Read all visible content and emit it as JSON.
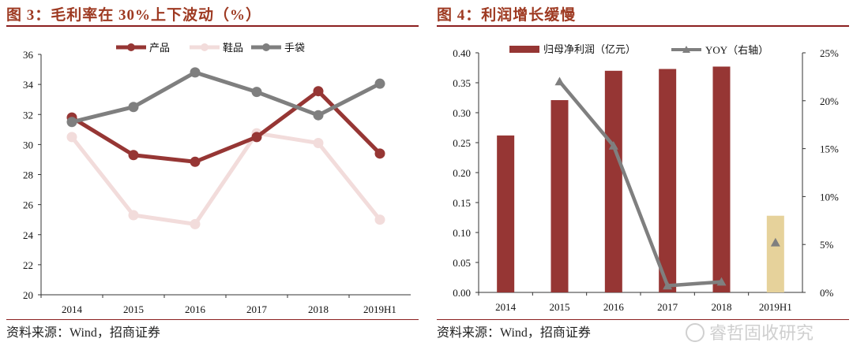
{
  "left": {
    "title": "图 3：毛利率在 30%上下波动（%）",
    "source": "资料来源：Wind，招商证券"
  },
  "right": {
    "title": "图 4：利润增长缓慢",
    "source": "资料来源：Wind，招商证券"
  },
  "watermark": "睿哲固收研究",
  "colors": {
    "dark_red": "#963634",
    "pink": "#f2dcdb",
    "gray": "#7f7f7f",
    "tan": "#e6d29b",
    "title": "#9e3a22"
  },
  "chart_data": [
    {
      "type": "line",
      "title": "毛利率在 30%上下波动（%）",
      "categories": [
        "2014",
        "2015",
        "2016",
        "2017",
        "2018",
        "2019H1"
      ],
      "series": [
        {
          "name": "产品",
          "values": [
            31.8,
            29.3,
            28.85,
            30.5,
            33.55,
            29.4
          ],
          "color": "#963634"
        },
        {
          "name": "鞋品",
          "values": [
            30.5,
            25.3,
            24.7,
            30.75,
            30.1,
            25.0
          ],
          "color": "#f2dcdb"
        },
        {
          "name": "手袋",
          "values": [
            31.5,
            32.5,
            34.8,
            33.5,
            31.95,
            34.05
          ],
          "color": "#7f7f7f"
        }
      ],
      "ylim": [
        20,
        36
      ],
      "yticks": [
        "20",
        "22",
        "24",
        "26",
        "28",
        "30",
        "32",
        "34",
        "36"
      ],
      "legend": "top-center"
    },
    {
      "type": "bar",
      "title": "利润增长缓慢",
      "categories": [
        "2014",
        "2015",
        "2016",
        "2017",
        "2018",
        "2019H1"
      ],
      "series": [
        {
          "name": "归母净利润（亿元）",
          "values": [
            0.262,
            0.321,
            0.37,
            0.373,
            0.377,
            0.128
          ],
          "axis": "left"
        },
        {
          "name": "YOY（右轴）",
          "values": [
            null,
            22.0,
            15.3,
            0.7,
            1.1,
            5.2
          ],
          "axis": "right",
          "type": "line"
        }
      ],
      "ylim": [
        0,
        0.4
      ],
      "yticks": [
        "0.00",
        "0.05",
        "0.10",
        "0.15",
        "0.20",
        "0.25",
        "0.30",
        "0.35",
        "0.40"
      ],
      "y2lim": [
        0,
        25
      ],
      "y2ticks": [
        "0%",
        "5%",
        "10%",
        "15%",
        "20%",
        "25%"
      ],
      "legend": "top-center"
    }
  ]
}
